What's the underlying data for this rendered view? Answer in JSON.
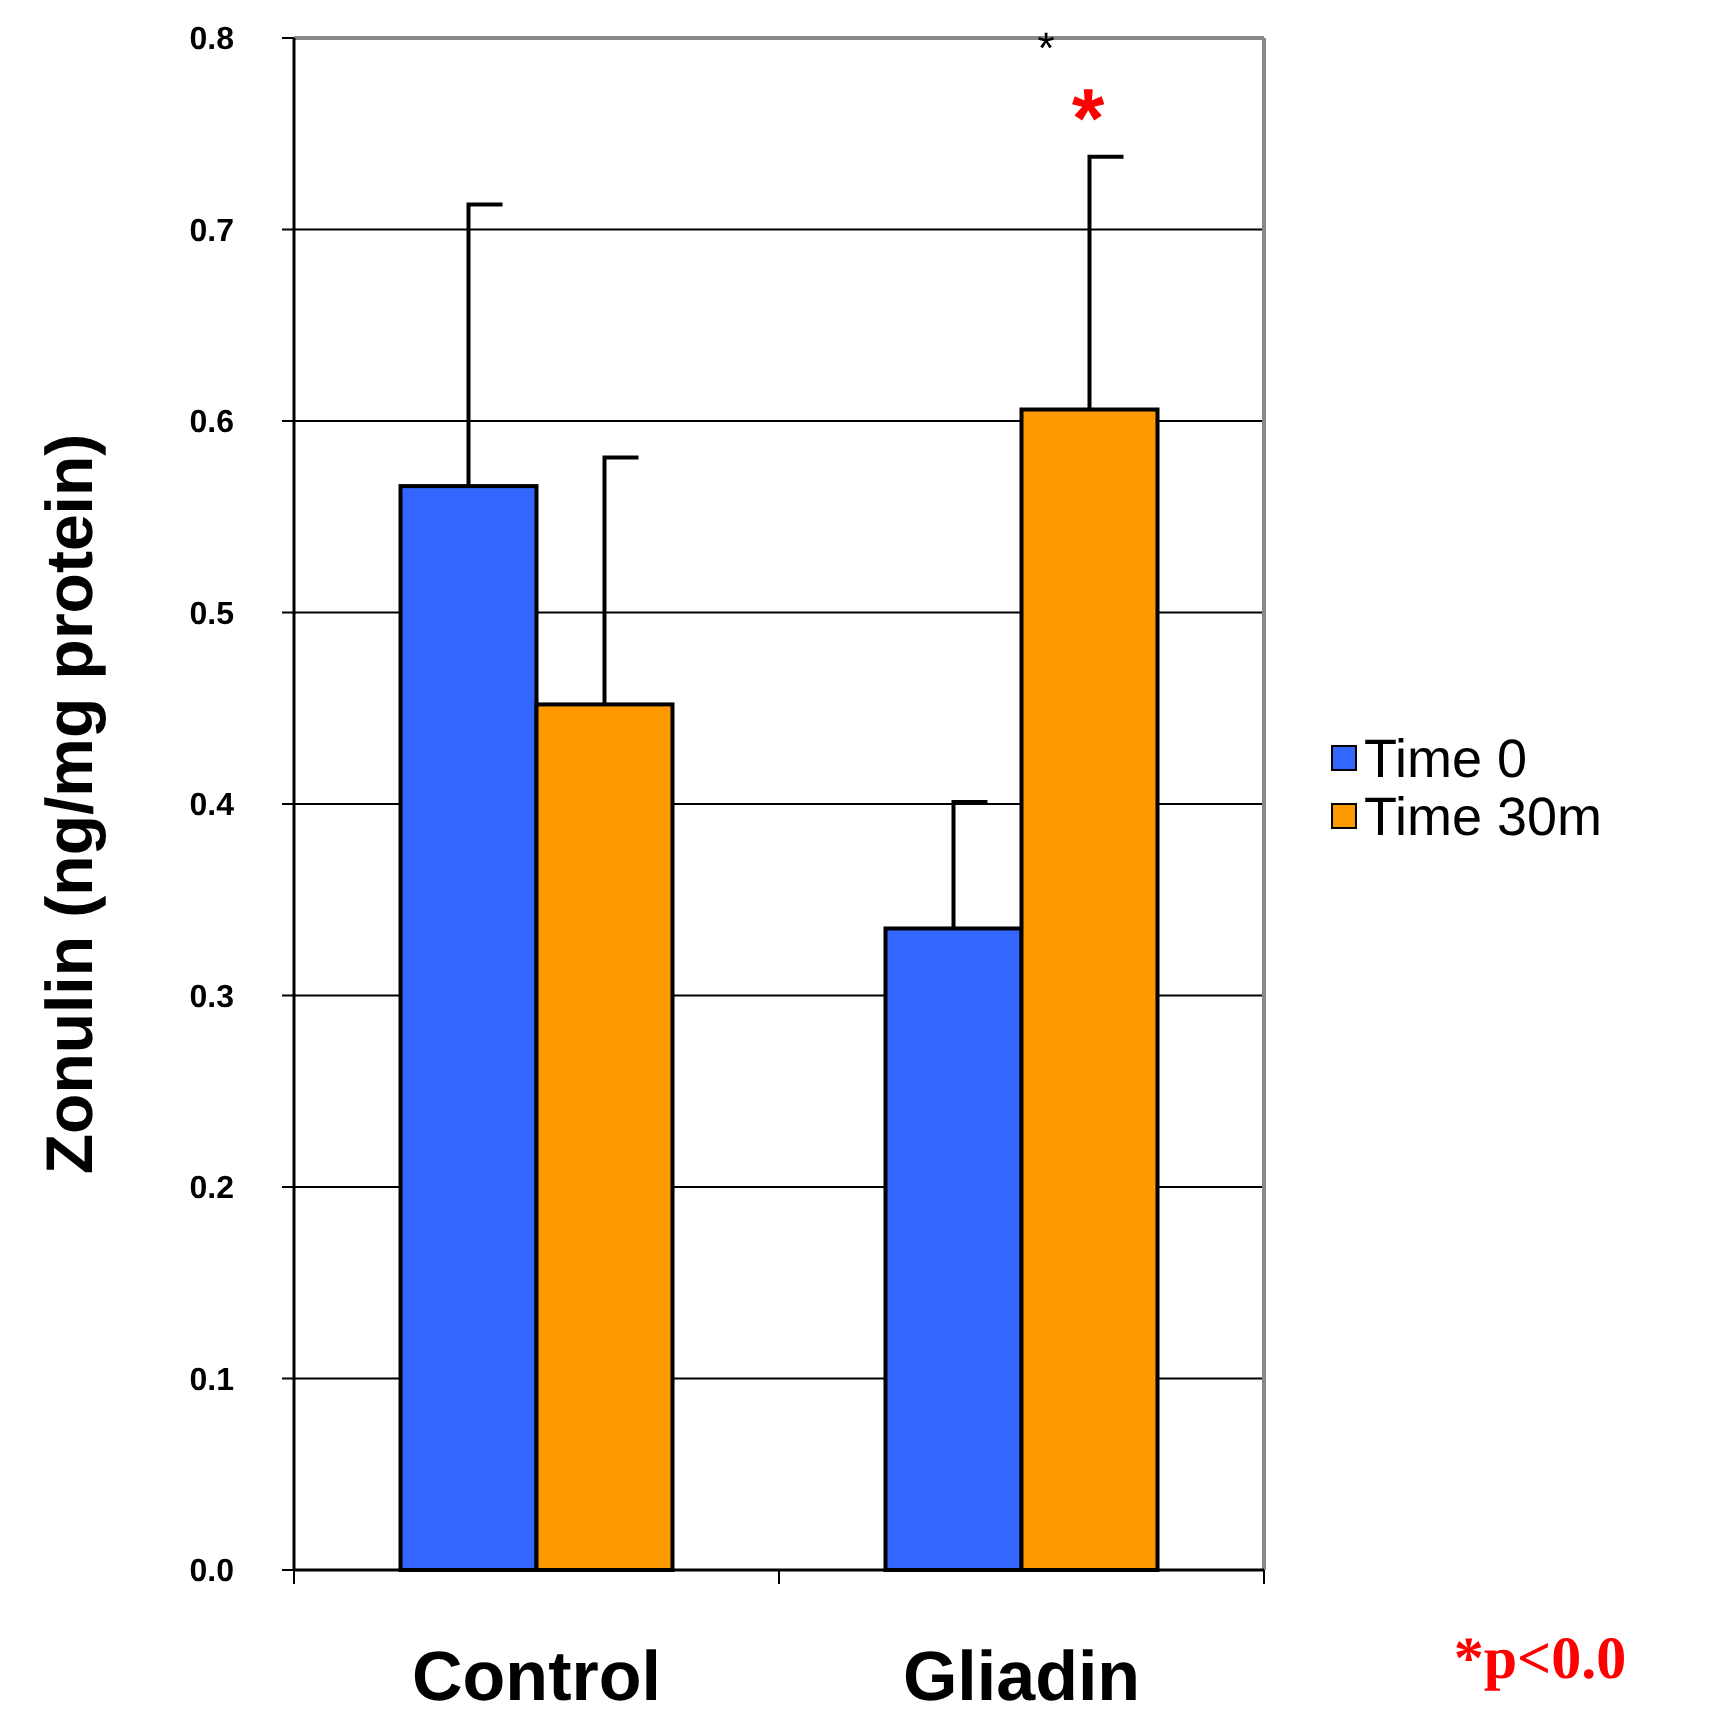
{
  "chart_data": {
    "type": "bar",
    "ylabel": "Zonulin (ng/mg protein)",
    "categories": [
      "Control",
      "Gliadin"
    ],
    "series": [
      {
        "name": "Time 0",
        "color": "#3366ff",
        "values": [
          0.566,
          0.335
        ],
        "errors": [
          [
            0.566,
            0.713
          ],
          [
            0.335,
            0.401
          ]
        ]
      },
      {
        "name": "Time 30m",
        "color": "#ff9900",
        "values": [
          0.452,
          0.606
        ],
        "errors": [
          [
            0.452,
            0.581
          ],
          [
            0.606,
            0.738
          ]
        ]
      }
    ],
    "ylim": [
      0,
      0.8
    ],
    "yticks": [
      {
        "value": 0,
        "label": "0.0"
      },
      0.1,
      0.2,
      0.3,
      0.4,
      0.5,
      0.6,
      0.7,
      0.8
    ],
    "grid": "y",
    "legend": "right",
    "annotations": [
      "*",
      "*",
      "*p<0.0"
    ]
  }
}
